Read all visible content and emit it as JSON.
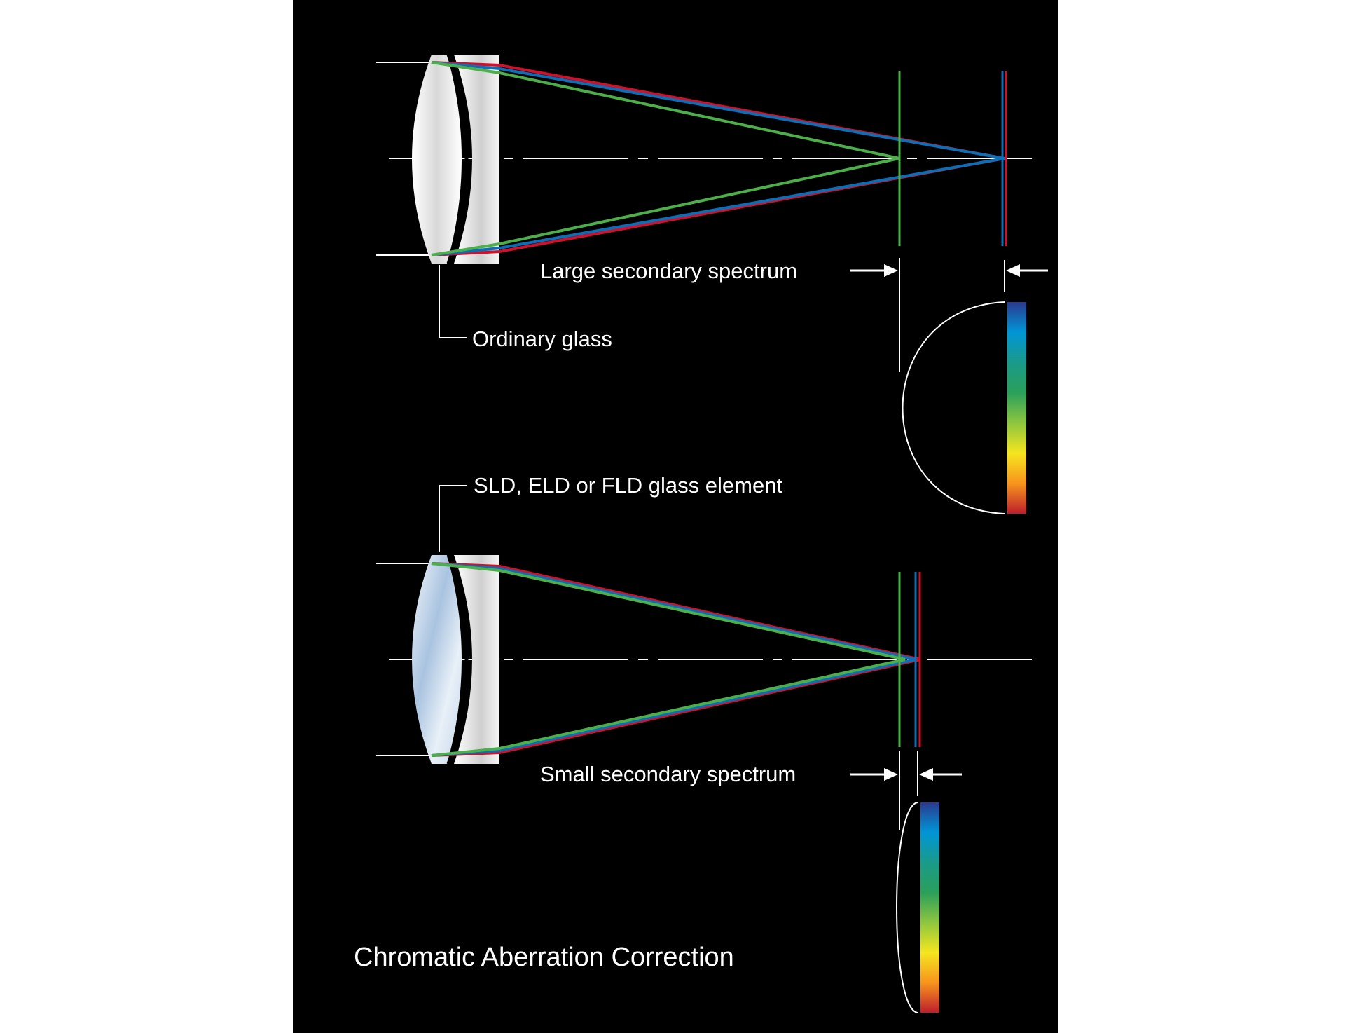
{
  "title": "Chromatic Aberration Correction",
  "labels": {
    "large_spectrum": "Large secondary spectrum",
    "ordinary_glass": "Ordinary glass",
    "special_glass": "SLD, ELD or FLD glass element",
    "small_spectrum": "Small secondary spectrum"
  },
  "colors": {
    "background": "#000000",
    "red_ray": "#d0112b",
    "blue_ray": "#0b6fb8",
    "green_ray": "#4caf4a",
    "line": "#ffffff"
  },
  "spectrum_gradient": [
    "#2b3990",
    "#0096d6",
    "#1a9a8a",
    "#2aa05a",
    "#8dc63f",
    "#f5e61e",
    "#f7941d",
    "#be1e2d"
  ]
}
